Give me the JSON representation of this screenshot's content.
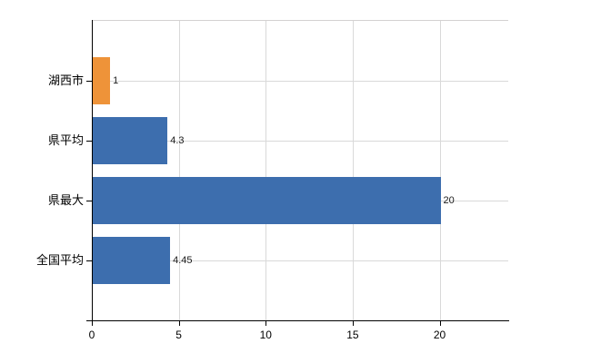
{
  "chart_data": {
    "type": "bar",
    "orientation": "horizontal",
    "title": "",
    "xlabel": "",
    "ylabel": "",
    "categories": [
      "湖西市",
      "県平均",
      "県最大",
      "全国平均"
    ],
    "values": [
      1,
      4.3,
      20,
      4.45
    ],
    "value_labels": [
      "1",
      "4.3",
      "20",
      "4.45"
    ],
    "bar_colors": [
      "#ee9339",
      "#3d6eae",
      "#3d6eae",
      "#3d6eae"
    ],
    "x_ticks": [
      0,
      5,
      10,
      15,
      20
    ],
    "x_tick_labels": [
      "0",
      "5",
      "10",
      "15",
      "20"
    ],
    "xlim": [
      0,
      23.95
    ],
    "grid": "vertical gridlines at x ticks; horizontal gridlines at category centers; top border line",
    "legend": "none",
    "colors": {
      "background": "#ffffff",
      "axis": "#000000",
      "gridline": "#d9d9d9",
      "accent_orange": "#ee9339",
      "accent_blue": "#3d6eae",
      "text": "#000000"
    }
  }
}
